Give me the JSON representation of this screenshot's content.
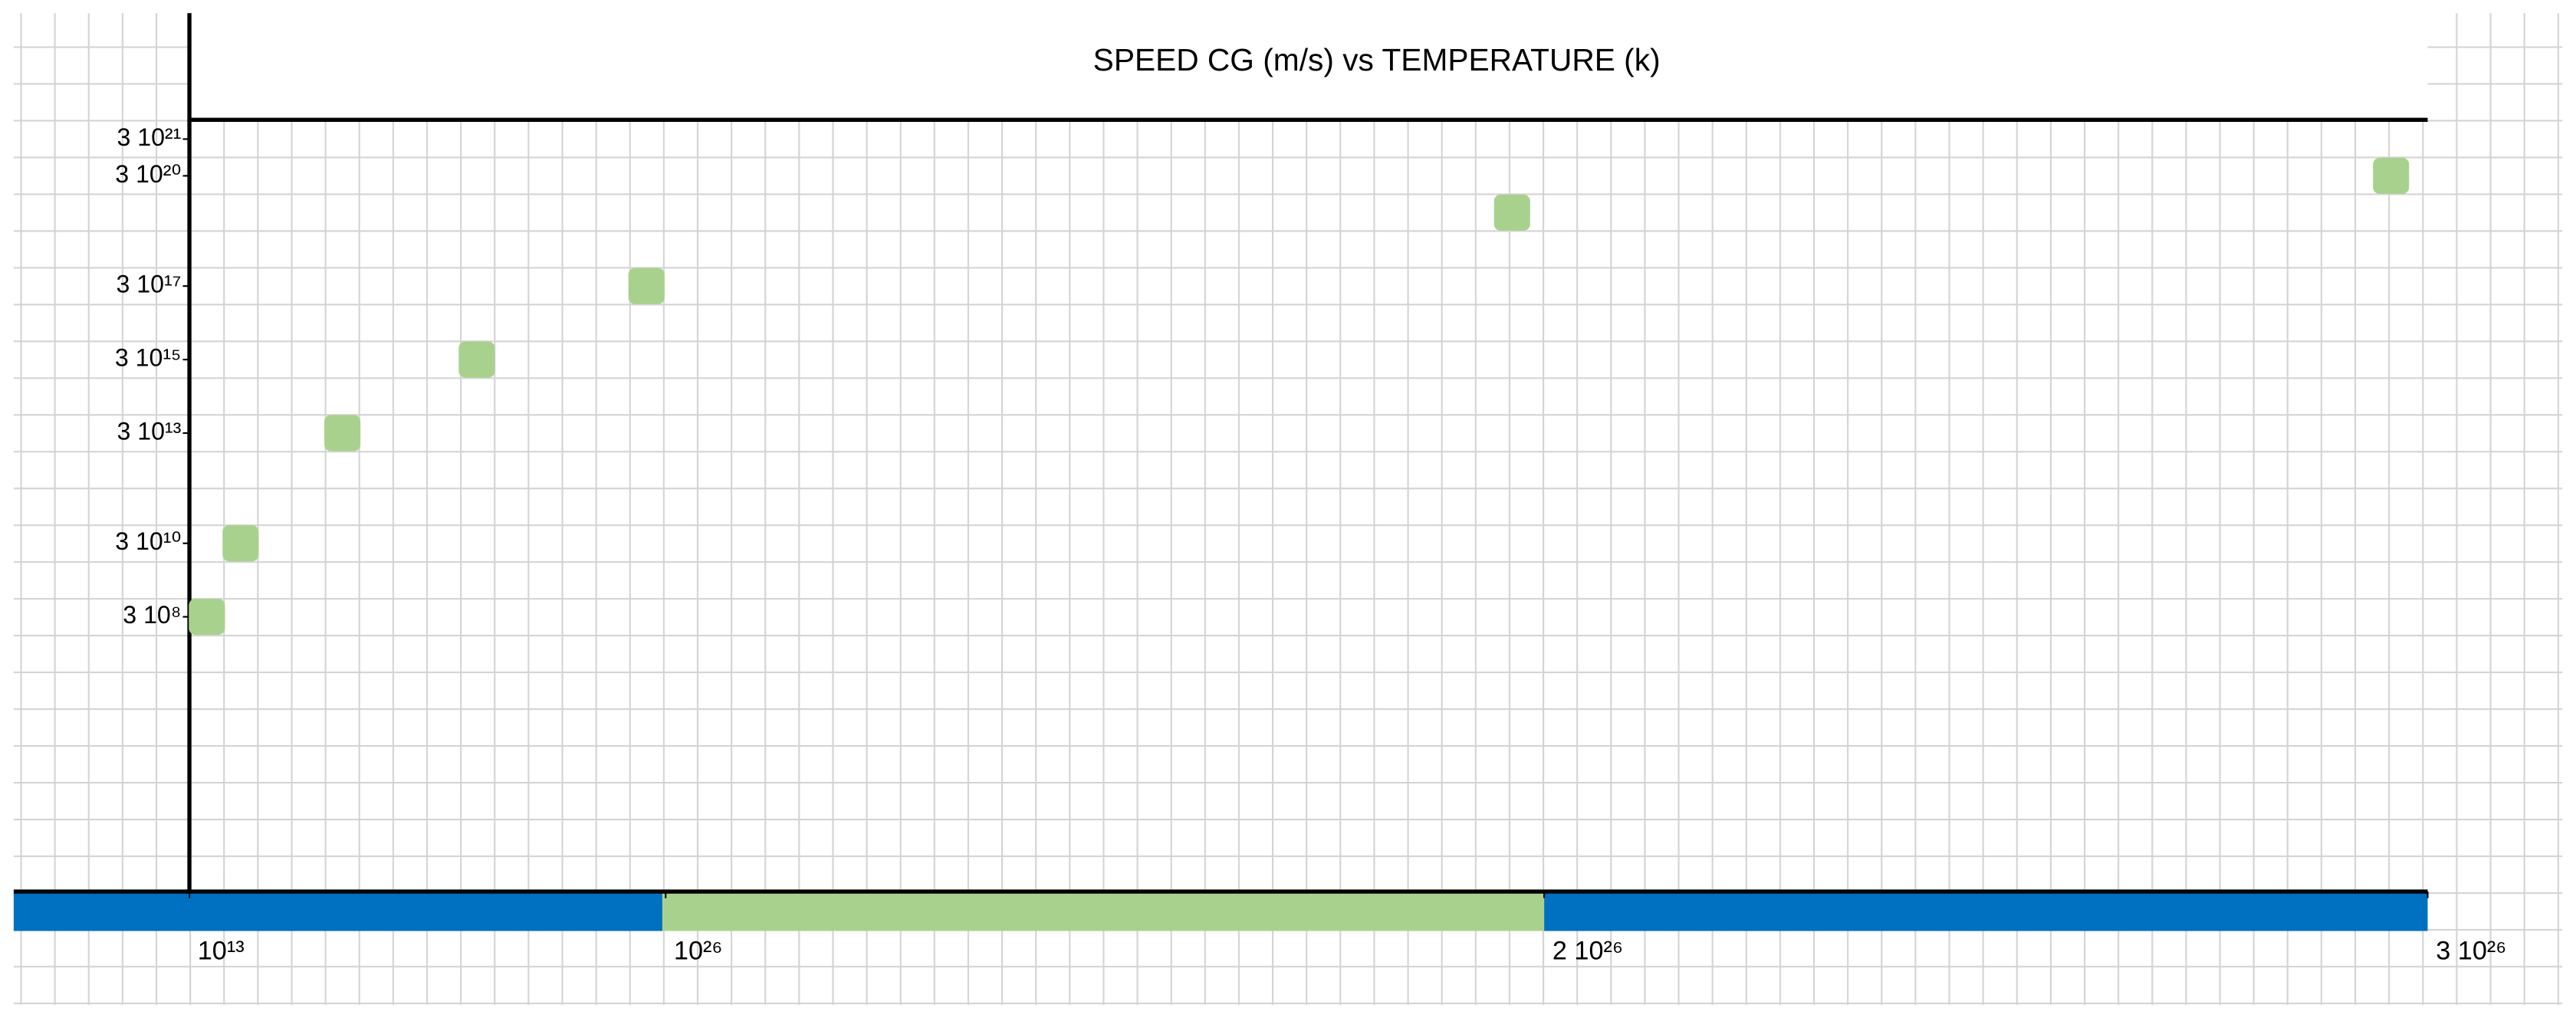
{
  "chart_data": {
    "type": "scatter",
    "title": "SPEED CG (m/s) vs TEMPERATURE (k)",
    "x": [
      30000000000000.0,
      250000000000000.0,
      1.5e+17,
      7e+20,
      3e+25,
      1.95e+26,
      2.95e+26
    ],
    "values": [
      300000000.0,
      30000000000.0,
      30000000000000.0,
      3000000000000000.0,
      3e+17,
      3e+19,
      3e+20
    ],
    "color": "#a9d18e",
    "ylog": true,
    "ylim": [
      10,
      1e+22
    ],
    "yticks": [
      {
        "value": 3e+21,
        "label": "3 10²¹"
      },
      {
        "value": 3e+20,
        "label": "3 10²⁰"
      },
      {
        "value": 3e+17,
        "label": "3 10¹⁷"
      },
      {
        "value": 3000000000000000.0,
        "label": "3 10¹⁵"
      },
      {
        "value": 30000000000000.0,
        "label": "3 10¹³"
      },
      {
        "value": 30000000000.0,
        "label": "3 10¹⁰"
      },
      {
        "value": 300000000.0,
        "label": "3  10⁸"
      }
    ],
    "xticks": [
      {
        "value": 10000000000000.0,
        "label": "10¹³"
      },
      {
        "value": 1e+26,
        "label": "10²⁶"
      },
      {
        "value": 2e+26,
        "label": "2 10²⁶"
      },
      {
        "value": 3e+26,
        "label": "3 10²⁶"
      }
    ],
    "grid": true
  }
}
